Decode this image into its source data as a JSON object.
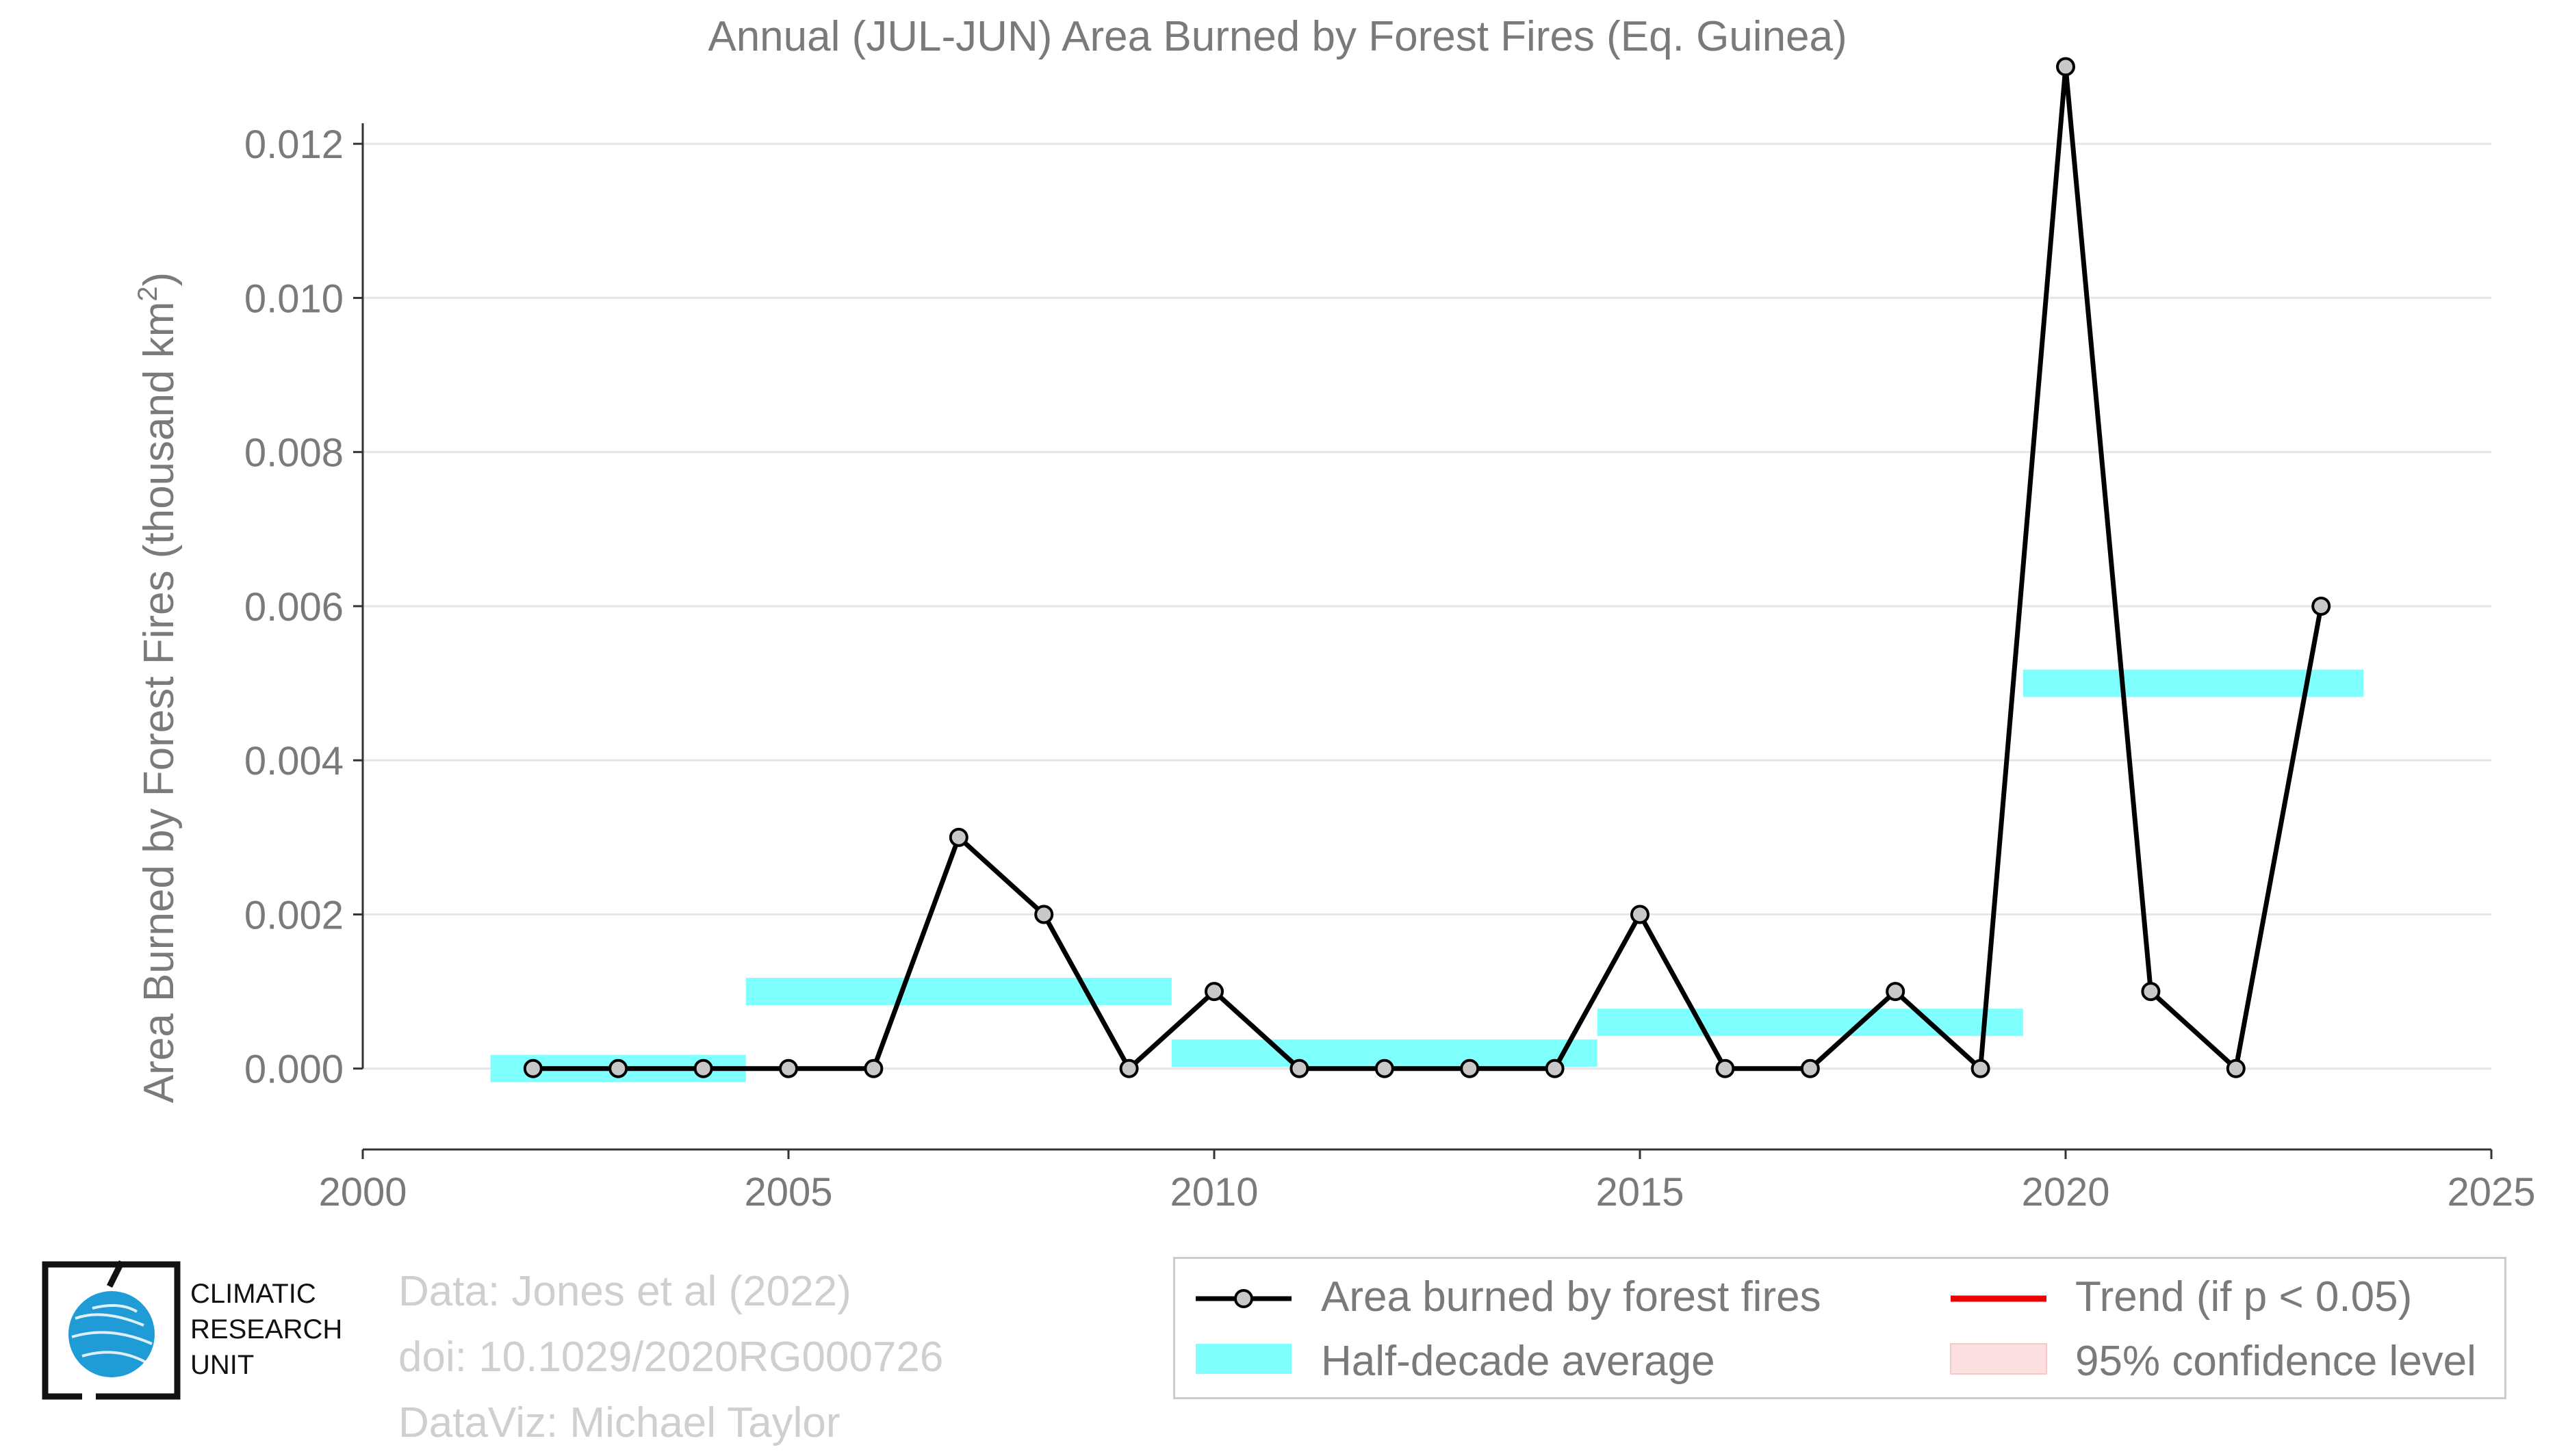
{
  "title": "Annual (JUL-JUN) Area Burned by Forest Fires (Eq. Guinea)",
  "chart_data": {
    "type": "line",
    "title": "Annual (JUL-JUN) Area Burned by Forest Fires (Eq. Guinea)",
    "xlabel": "",
    "ylabel": "Area Burned by Forest Fires (thousand km²)",
    "xlim": [
      2000,
      2025
    ],
    "ylim": [
      -0.00105,
      0.0132
    ],
    "x_ticks": [
      2000,
      2005,
      2010,
      2015,
      2020,
      2025
    ],
    "y_ticks": [
      0.0,
      0.002,
      0.004,
      0.006,
      0.008,
      0.01,
      0.012
    ],
    "x_tick_labels": [
      "2000",
      "2005",
      "2010",
      "2015",
      "2020",
      "2025"
    ],
    "y_tick_labels": [
      "0.000",
      "0.002",
      "0.004",
      "0.006",
      "0.008",
      "0.010",
      "0.012"
    ],
    "grid": "horizontal",
    "series": [
      {
        "name": "Area burned by forest fires",
        "color": "#000000",
        "marker_fill": "#c8c8c8",
        "x": [
          2002,
          2003,
          2004,
          2005,
          2006,
          2007,
          2008,
          2009,
          2010,
          2011,
          2012,
          2013,
          2014,
          2015,
          2016,
          2017,
          2018,
          2019,
          2020,
          2021,
          2022,
          2023
        ],
        "y": [
          0,
          0,
          0,
          0,
          0,
          0.003,
          0.002,
          0,
          0.001,
          0,
          0,
          0,
          0,
          0.002,
          0,
          0,
          0.001,
          0,
          0.013,
          0.001,
          0,
          0.006
        ]
      },
      {
        "name": "Half-decade average",
        "type": "step-bands",
        "color": "#80ffff",
        "segments": [
          {
            "x0": 2001.5,
            "x1": 2004.5,
            "y": 0.0
          },
          {
            "x0": 2004.5,
            "x1": 2009.5,
            "y": 0.001
          },
          {
            "x0": 2009.5,
            "x1": 2014.5,
            "y": 0.0002
          },
          {
            "x0": 2014.5,
            "x1": 2019.5,
            "y": 0.0006
          },
          {
            "x0": 2019.5,
            "x1": 2023.5,
            "y": 0.005
          }
        ]
      }
    ],
    "legend": {
      "placement": "bottom-right",
      "entries": [
        {
          "label": "Area burned by forest fires",
          "kind": "line-marker",
          "color": "#000000"
        },
        {
          "label": "Trend (if p < 0.05)",
          "kind": "line",
          "color": "#ee0000"
        },
        {
          "label": "Half-decade average",
          "kind": "band",
          "color": "#80ffff"
        },
        {
          "label": "95% confidence level",
          "kind": "band",
          "color": "#fde0e0"
        }
      ]
    }
  },
  "credits": {
    "data": "Data: Jones et al (2022)",
    "doi": "doi: 10.1029/2020RG000726",
    "dataviz": "DataViz: Michael Taylor"
  },
  "logo": {
    "line1": "CLIMATIC",
    "line2": "RESEARCH",
    "line3": "UNIT",
    "icon": "globe-icon"
  },
  "colors": {
    "axis_text": "#7a7a7a",
    "grid": "#e6e6e6",
    "line": "#000000",
    "half_decade": "#80ffff",
    "trend": "#ee0000",
    "confidence": "#fde0e0"
  }
}
